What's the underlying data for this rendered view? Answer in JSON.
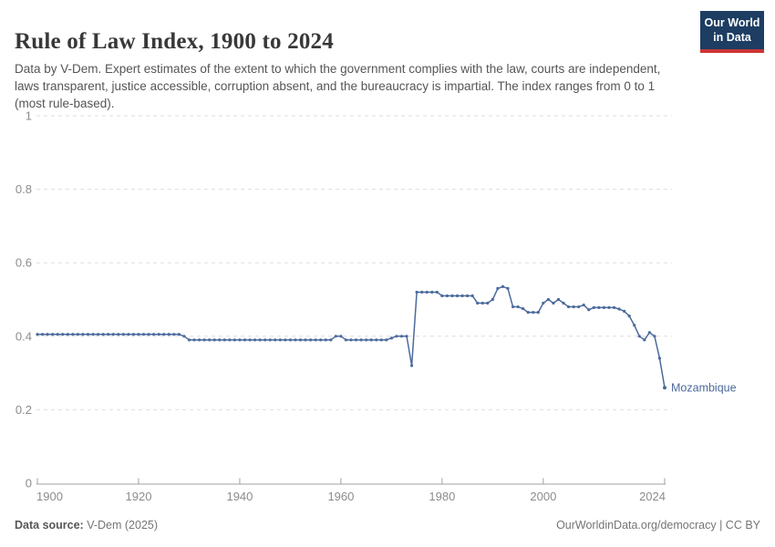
{
  "header": {
    "title": "Rule of Law Index, 1900 to 2024",
    "subtitle": "Data by V-Dem. Expert estimates of the extent to which the government complies with the law, courts are independent, laws transparent, justice accessible, corruption absent, and the bureaucracy is impartial. The index ranges from 0 to 1 (most rule-based).",
    "logo": {
      "line1": "Our World",
      "line2": "in Data"
    }
  },
  "chart_data": {
    "type": "line",
    "title": "Rule of Law Index, 1900 to 2024",
    "xlabel": "",
    "ylabel": "",
    "xlim": [
      1900,
      2024
    ],
    "ylim": [
      0,
      1
    ],
    "x_ticks": [
      1900,
      1920,
      1940,
      1960,
      1980,
      2000,
      2024
    ],
    "y_ticks": [
      0,
      0.2,
      0.4,
      0.6,
      0.8,
      1
    ],
    "grid": "horizontal-dashed",
    "legend_position": "end-of-line-label",
    "series": [
      {
        "name": "Mozambique",
        "color": "#4c6a9c",
        "x_start": 1900,
        "x_step": 1,
        "values": [
          0.405,
          0.405,
          0.405,
          0.405,
          0.405,
          0.405,
          0.405,
          0.405,
          0.405,
          0.405,
          0.405,
          0.405,
          0.405,
          0.405,
          0.405,
          0.405,
          0.405,
          0.405,
          0.405,
          0.405,
          0.405,
          0.405,
          0.405,
          0.405,
          0.405,
          0.405,
          0.405,
          0.405,
          0.405,
          0.4,
          0.39,
          0.39,
          0.39,
          0.39,
          0.39,
          0.39,
          0.39,
          0.39,
          0.39,
          0.39,
          0.39,
          0.39,
          0.39,
          0.39,
          0.39,
          0.39,
          0.39,
          0.39,
          0.39,
          0.39,
          0.39,
          0.39,
          0.39,
          0.39,
          0.39,
          0.39,
          0.39,
          0.39,
          0.39,
          0.4,
          0.4,
          0.39,
          0.39,
          0.39,
          0.39,
          0.39,
          0.39,
          0.39,
          0.39,
          0.39,
          0.395,
          0.4,
          0.4,
          0.4,
          0.32,
          0.52,
          0.52,
          0.52,
          0.52,
          0.52,
          0.51,
          0.51,
          0.51,
          0.51,
          0.51,
          0.51,
          0.51,
          0.49,
          0.49,
          0.49,
          0.5,
          0.53,
          0.535,
          0.53,
          0.48,
          0.48,
          0.475,
          0.465,
          0.465,
          0.465,
          0.49,
          0.5,
          0.49,
          0.5,
          0.49,
          0.48,
          0.48,
          0.48,
          0.485,
          0.472,
          0.478,
          0.478,
          0.478,
          0.478,
          0.478,
          0.474,
          0.468,
          0.455,
          0.43,
          0.4,
          0.39,
          0.41,
          0.4,
          0.34,
          0.26
        ]
      }
    ]
  },
  "footer": {
    "source_label": "Data source:",
    "source_value": " V-Dem (2025)",
    "credit": "OurWorldinData.org/democracy | CC BY"
  },
  "colors": {
    "line": "#4c6a9c",
    "grid": "#dedede",
    "axis": "#a0a0a0",
    "tick_label": "#8c8c8c",
    "logo_bg": "#1d3d63",
    "logo_red": "#cb3434"
  }
}
